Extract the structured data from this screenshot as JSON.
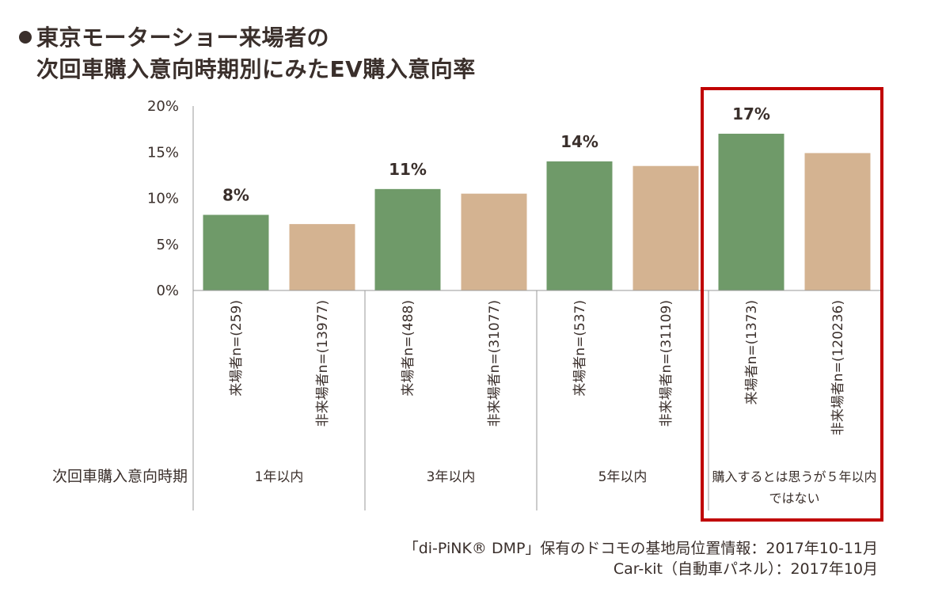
{
  "title": {
    "line1": "東京モーターショー来場者の",
    "line2": "次回車購入意向時期別にみたEV購入意向率"
  },
  "chart_data": {
    "type": "bar",
    "ylim": [
      0,
      20
    ],
    "y_ticks": [
      "0%",
      "5%",
      "10%",
      "15%",
      "20%"
    ],
    "y_tick_values": [
      0,
      5,
      10,
      15,
      20
    ],
    "group_axis_label": "次回車購入意向時期",
    "groups": [
      {
        "label": "1年以内",
        "label2": "",
        "bars": [
          {
            "category": "来場者n=(259)",
            "value": 8.2,
            "data_label": "8%",
            "kind": "visitor"
          },
          {
            "category": "非来場者n=(13977)",
            "value": 7.2,
            "data_label": "",
            "kind": "nonvisitor"
          }
        ]
      },
      {
        "label": "3年以内",
        "label2": "",
        "bars": [
          {
            "category": "来場者n=(488)",
            "value": 11.0,
            "data_label": "11%",
            "kind": "visitor"
          },
          {
            "category": "非来場者n=(31077)",
            "value": 10.5,
            "data_label": "",
            "kind": "nonvisitor"
          }
        ]
      },
      {
        "label": "5年以内",
        "label2": "",
        "bars": [
          {
            "category": "来場者n=(537)",
            "value": 14.0,
            "data_label": "14%",
            "kind": "visitor"
          },
          {
            "category": "非来場者n=(31109)",
            "value": 13.5,
            "data_label": "",
            "kind": "nonvisitor"
          }
        ]
      },
      {
        "label": "購入するとは思うが５年以内",
        "label2": "ではない",
        "bars": [
          {
            "category": "来場者n=(1373)",
            "value": 17.0,
            "data_label": "17%",
            "kind": "visitor"
          },
          {
            "category": "非来場者n=(120236)",
            "value": 14.9,
            "data_label": "",
            "kind": "nonvisitor"
          }
        ]
      }
    ],
    "highlighted_group": 3,
    "colors": {
      "visitor": "#6f9a69",
      "nonvisitor": "#d4b391",
      "highlight": "#c00000",
      "axis": "#9a9a9a",
      "text": "#3a2f2b"
    }
  },
  "source": {
    "line1": "「di-PiNK® DMP」保有のドコモの基地局位置情報：2017年10-11月",
    "line2": "Car-kit（自動車パネル）：2017年10月"
  }
}
